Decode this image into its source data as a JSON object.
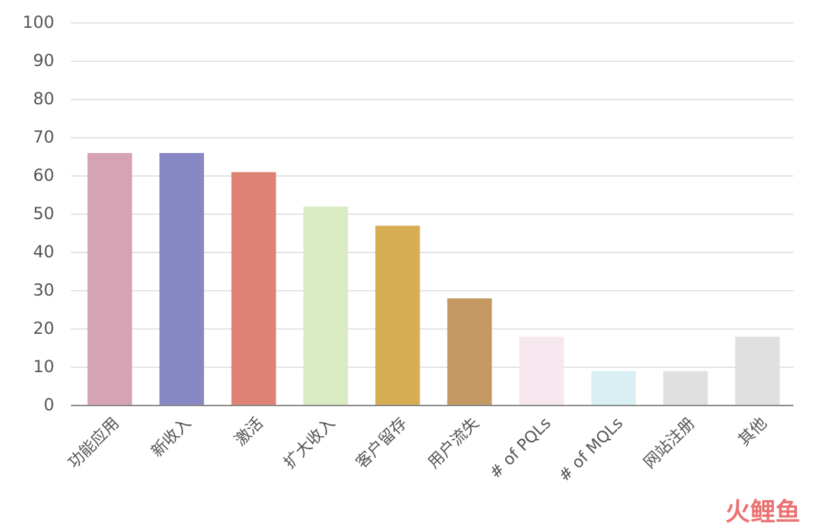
{
  "chart_data": {
    "type": "bar",
    "categories": [
      "功能应用",
      "新收入",
      "激活",
      "扩大收入",
      "客户留存",
      "用户流失",
      "# of PQLs",
      "# of MQLs",
      "网站注册",
      "其他"
    ],
    "values": [
      66,
      66,
      61,
      52,
      47,
      28,
      18,
      9,
      9,
      18
    ],
    "colors": [
      "#d5a3b3",
      "#8787c3",
      "#de8373",
      "#d9ebc3",
      "#d8ae52",
      "#c39863",
      "#f6e8ee",
      "#d9eff3",
      "#e0e0e0",
      "#e0e0e0"
    ],
    "ylim": [
      0,
      100
    ],
    "yticks": [
      0,
      10,
      20,
      30,
      40,
      50,
      60,
      70,
      80,
      90,
      100
    ],
    "grid": true
  },
  "watermark": "火鲤鱼"
}
